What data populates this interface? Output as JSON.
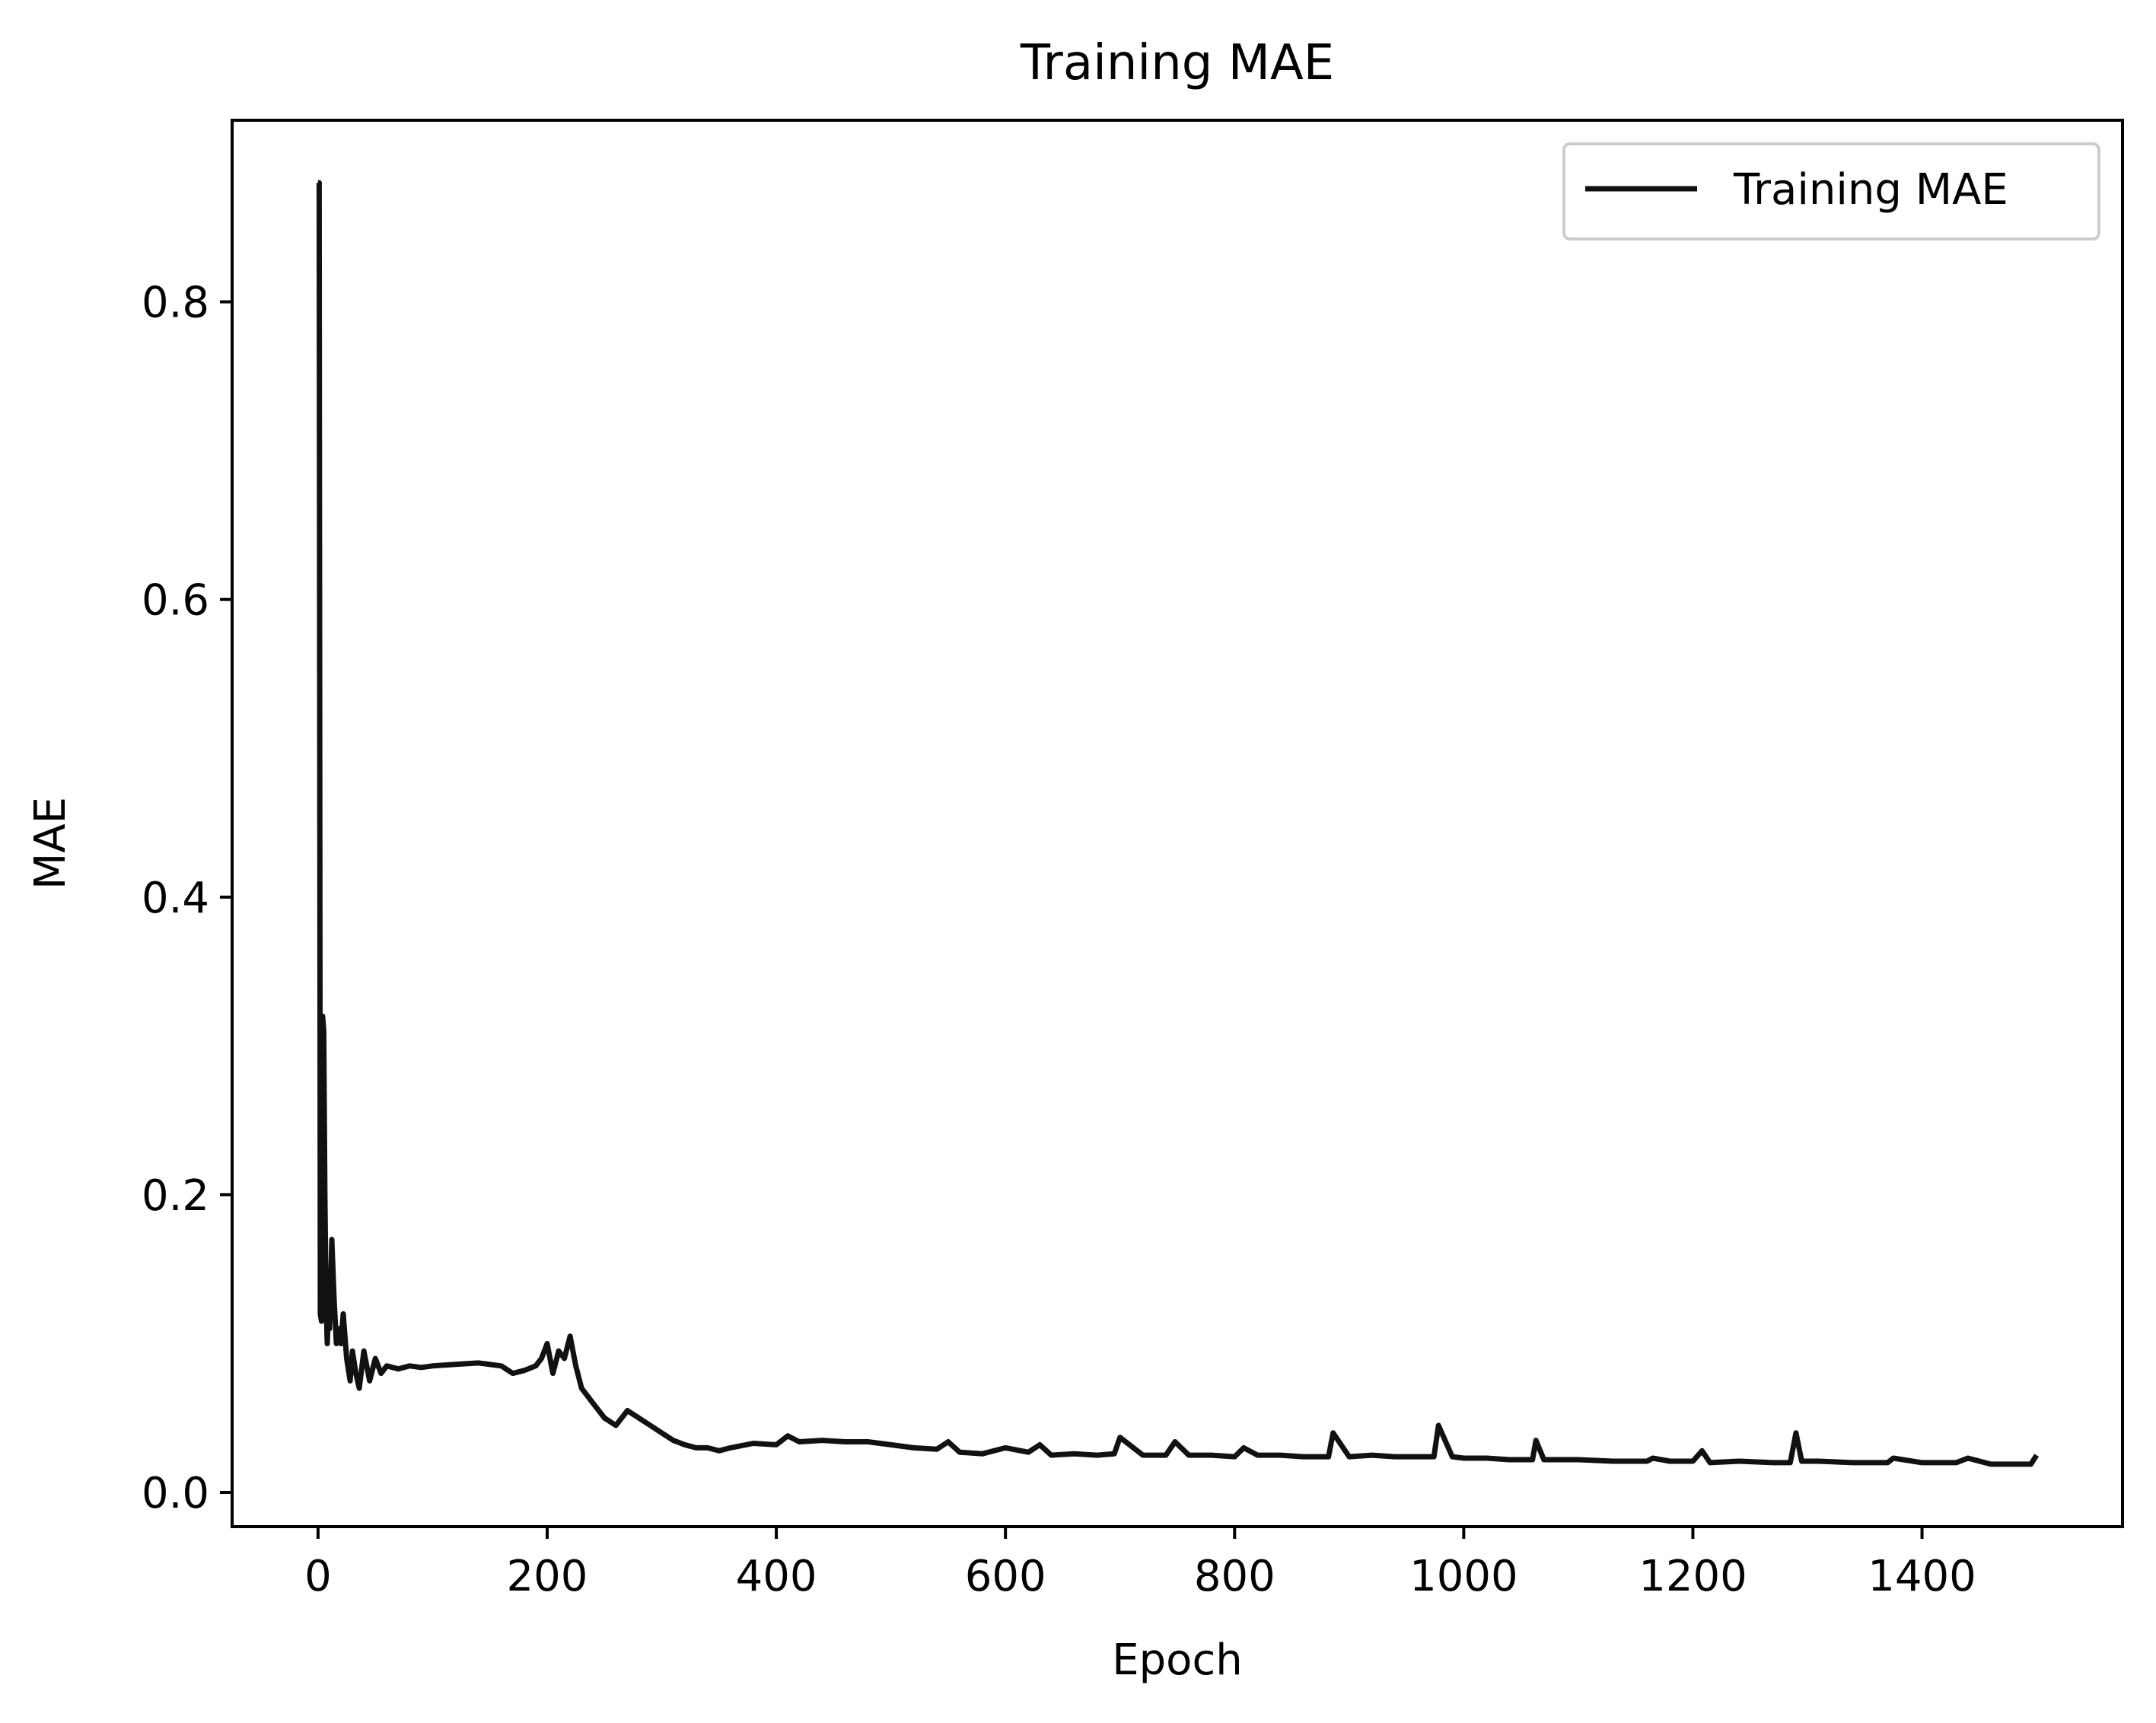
{
  "chart_data": {
    "type": "line",
    "title": "Training MAE",
    "xlabel": "Epoch",
    "ylabel": "MAE",
    "xlim": [
      -75,
      1575
    ],
    "ylim": [
      -0.023,
      0.922
    ],
    "xticks": [
      {
        "value": 0,
        "label": "0"
      },
      {
        "value": 200,
        "label": "200"
      },
      {
        "value": 400,
        "label": "400"
      },
      {
        "value": 600,
        "label": "600"
      },
      {
        "value": 800,
        "label": "800"
      },
      {
        "value": 1000,
        "label": "1000"
      },
      {
        "value": 1200,
        "label": "1200"
      },
      {
        "value": 1400,
        "label": "1400"
      }
    ],
    "yticks": [
      {
        "value": 0.0,
        "label": "0.0"
      },
      {
        "value": 0.2,
        "label": "0.2"
      },
      {
        "value": 0.4,
        "label": "0.4"
      },
      {
        "value": 0.6,
        "label": "0.6"
      },
      {
        "value": 0.8,
        "label": "0.8"
      }
    ],
    "grid": false,
    "legend": {
      "position": "top-right",
      "entries": [
        "Training MAE"
      ]
    },
    "series": [
      {
        "name": "Training MAE",
        "color": "#111111",
        "x": [
          0,
          1,
          2,
          3,
          4,
          5,
          6,
          7,
          8,
          9,
          10,
          12,
          14,
          16,
          18,
          20,
          22,
          25,
          28,
          30,
          33,
          36,
          40,
          45,
          50,
          55,
          60,
          70,
          80,
          90,
          100,
          120,
          140,
          160,
          170,
          180,
          190,
          195,
          200,
          205,
          210,
          215,
          220,
          225,
          230,
          240,
          250,
          260,
          270,
          280,
          290,
          300,
          310,
          320,
          330,
          340,
          350,
          360,
          380,
          400,
          410,
          420,
          440,
          460,
          480,
          500,
          520,
          540,
          550,
          560,
          580,
          600,
          620,
          630,
          640,
          660,
          680,
          695,
          700,
          720,
          740,
          748,
          760,
          780,
          800,
          808,
          820,
          840,
          860,
          882,
          886,
          900,
          920,
          940,
          960,
          974,
          978,
          990,
          1000,
          1020,
          1040,
          1060,
          1063,
          1070,
          1100,
          1130,
          1160,
          1165,
          1180,
          1200,
          1208,
          1215,
          1240,
          1270,
          1285,
          1290,
          1295,
          1310,
          1340,
          1370,
          1375,
          1400,
          1430,
          1440,
          1460,
          1480,
          1495,
          1500
        ],
        "values": [
          0.88,
          0.88,
          0.12,
          0.115,
          0.32,
          0.31,
          0.2,
          0.13,
          0.1,
          0.12,
          0.11,
          0.17,
          0.13,
          0.1,
          0.11,
          0.1,
          0.12,
          0.09,
          0.075,
          0.095,
          0.08,
          0.07,
          0.095,
          0.075,
          0.09,
          0.08,
          0.085,
          0.083,
          0.085,
          0.084,
          0.085,
          0.086,
          0.087,
          0.085,
          0.08,
          0.082,
          0.085,
          0.09,
          0.1,
          0.08,
          0.095,
          0.09,
          0.105,
          0.085,
          0.07,
          0.06,
          0.05,
          0.045,
          0.055,
          0.05,
          0.045,
          0.04,
          0.035,
          0.032,
          0.03,
          0.03,
          0.028,
          0.03,
          0.033,
          0.032,
          0.038,
          0.034,
          0.035,
          0.034,
          0.034,
          0.032,
          0.03,
          0.029,
          0.034,
          0.027,
          0.026,
          0.03,
          0.027,
          0.032,
          0.025,
          0.026,
          0.025,
          0.026,
          0.037,
          0.025,
          0.025,
          0.034,
          0.025,
          0.025,
          0.024,
          0.03,
          0.025,
          0.025,
          0.024,
          0.024,
          0.04,
          0.024,
          0.025,
          0.024,
          0.024,
          0.024,
          0.045,
          0.024,
          0.023,
          0.023,
          0.022,
          0.022,
          0.035,
          0.022,
          0.022,
          0.021,
          0.021,
          0.023,
          0.021,
          0.021,
          0.028,
          0.02,
          0.021,
          0.02,
          0.02,
          0.04,
          0.021,
          0.021,
          0.02,
          0.02,
          0.023,
          0.02,
          0.02,
          0.023,
          0.019,
          0.019,
          0.019,
          0.025
        ]
      }
    ]
  }
}
